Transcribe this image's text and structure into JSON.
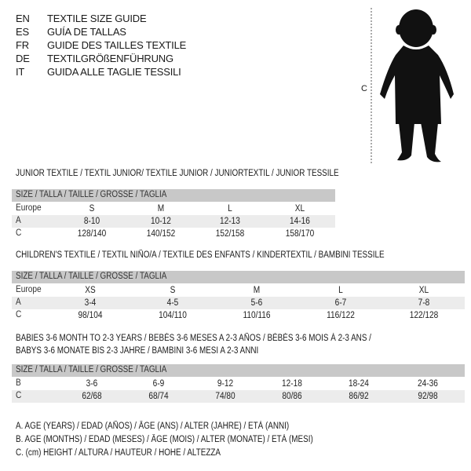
{
  "header": {
    "lines": [
      {
        "code": "EN",
        "text": "TEXTILE SIZE GUIDE"
      },
      {
        "code": "ES",
        "text": "GUÍA DE TALLAS"
      },
      {
        "code": "FR",
        "text": "GUIDE DES TAILLES TEXTILE"
      },
      {
        "code": "DE",
        "text": "TEXTILGRÖßENFÜHRUNG"
      },
      {
        "code": "IT",
        "text": "GUIDA ALLE TAGLIE TESSILI"
      }
    ]
  },
  "figure": {
    "measure_label": "C",
    "icon": "child-silhouette"
  },
  "tables": [
    {
      "title": "JUNIOR TEXTILE / TEXTIL JUNIOR/ TEXTILE JUNIOR / JUNIORTEXTIL / JUNIOR TESSILE",
      "header": "SIZE / TALLA / TAILLE / GRÖSSE / TAGLIA",
      "rows": [
        {
          "label": "Europe",
          "values": [
            "S",
            "M",
            "L",
            "XL"
          ]
        },
        {
          "label": "A",
          "values": [
            "8-10",
            "10-12",
            "12-13",
            "14-16"
          ]
        },
        {
          "label": "C",
          "values": [
            "128/140",
            "140/152",
            "152/158",
            "158/170"
          ]
        }
      ]
    },
    {
      "title": "CHILDREN'S TEXTILE / TEXTIL NIÑO/A / TEXTILE DES ENFANTS / KINDERTEXTIL / BAMBINI TESSILE",
      "header": "SIZE / TALLA / TAILLE / GRÖSSE / TAGLIA",
      "rows": [
        {
          "label": "Europe",
          "values": [
            "XS",
            "S",
            "M",
            "L",
            "XL"
          ]
        },
        {
          "label": "A",
          "values": [
            "3-4",
            "4-5",
            "5-6",
            "6-7",
            "7-8"
          ]
        },
        {
          "label": "C",
          "values": [
            "98/104",
            "104/110",
            "110/116",
            "116/122",
            "122/128"
          ]
        }
      ]
    },
    {
      "title": "BABIES 3-6 MONTH TO 2-3 YEARS / BEBÉS 3-6 MESES A 2-3 AÑOS / BÉBÉS 3-6 MOIS À 2-3 ANS /",
      "title2": "BABYS 3-6 MONATE BIS 2-3 JAHRE / BAMBINI 3-6 MESI A 2-3 ANNI",
      "header": "SIZE / TALLA / TAILLE / GRÖSSE / TAGLIA",
      "rows": [
        {
          "label": "B",
          "values": [
            "3-6",
            "6-9",
            "9-12",
            "12-18",
            "18-24",
            "24-36"
          ]
        },
        {
          "label": "C",
          "values": [
            "62/68",
            "68/74",
            "74/80",
            "80/86",
            "86/92",
            "92/98"
          ]
        }
      ]
    }
  ],
  "legend": [
    "A. AGE (YEARS) / EDAD (AÑOS) / ÂGE (ANS) / ALTER (JAHRE) / ETÀ (ANNI)",
    "B. AGE (MONTHS) / EDAD (MESES) / ÂGE (MOIS) / ALTER (MONATE) / ETÀ (MESI)",
    "C. (cm) HEIGHT / ALTURA / HAUTEUR / HÖHE / ALTEZZA"
  ]
}
